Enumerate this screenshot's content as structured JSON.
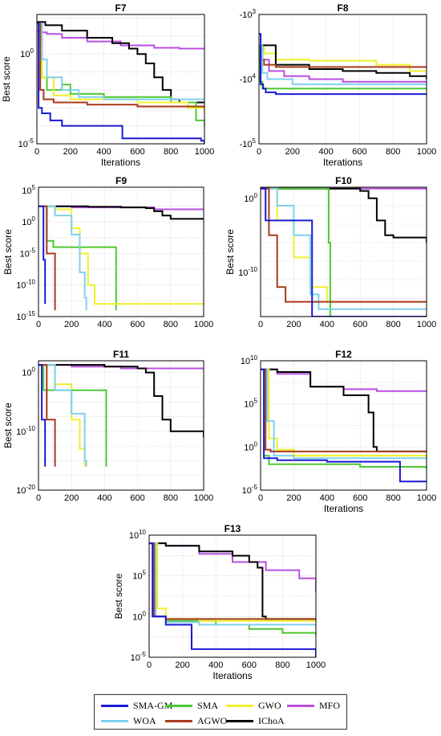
{
  "series_styles": [
    {
      "key": "SMA-GM",
      "color": "#1a1ad6"
    },
    {
      "key": "SMA",
      "color": "#4cc832"
    },
    {
      "key": "GWO",
      "color": "#f0f02a"
    },
    {
      "key": "MFO",
      "color": "#b84fe0"
    },
    {
      "key": "WOA",
      "color": "#7fd0ee"
    },
    {
      "key": "AGWO",
      "color": "#a83a1c"
    },
    {
      "key": "IChoA",
      "color": "#000000"
    }
  ],
  "legend": {
    "entries": [
      "SMA-GM",
      "SMA",
      "GWO",
      "MFO",
      "WOA",
      "AGWO",
      "IChoA"
    ]
  },
  "chart_data": [
    {
      "id": "F7",
      "type": "line",
      "title": "F7",
      "xlabel": "Iterations",
      "ylabel": "Best score",
      "yscale": "log",
      "xlim": [
        0,
        1000
      ],
      "ylim_exp": [
        -5,
        2.2
      ],
      "xticks": [
        "0",
        "200",
        "400",
        "600",
        "800",
        "1000"
      ],
      "yticks": [
        "10^0",
        "10^-5"
      ],
      "series": [
        {
          "key": "MFO",
          "x": [
            0,
            20,
            60,
            150,
            300,
            500,
            700,
            850,
            1000
          ],
          "y": [
            20,
            16,
            13,
            8,
            5,
            3,
            2.2,
            2,
            2
          ]
        },
        {
          "key": "IChoA",
          "x": [
            0,
            50,
            150,
            300,
            450,
            550,
            600,
            650,
            700,
            750,
            800,
            850,
            900,
            1000
          ],
          "y": [
            60,
            40,
            20,
            8,
            4,
            2,
            1,
            0.3,
            0.05,
            0.01,
            0.003,
            0.002,
            0.002,
            0.002
          ]
        },
        {
          "key": "SMA",
          "x": [
            0,
            30,
            60,
            150,
            200,
            400,
            800,
            950,
            1000
          ],
          "y": [
            50,
            0.05,
            0.01,
            0.02,
            0.006,
            0.004,
            0.002,
            0.0002,
            0.0001
          ]
        },
        {
          "key": "GWO",
          "x": [
            0,
            10,
            30,
            100,
            200,
            600,
            900,
            1000
          ],
          "y": [
            50,
            5,
            0.05,
            0.005,
            0.003,
            0.002,
            0.001,
            0.0005
          ]
        },
        {
          "key": "WOA",
          "x": [
            0,
            30,
            60,
            150,
            250,
            400,
            1000
          ],
          "y": [
            50,
            0.5,
            0.05,
            0.01,
            0.004,
            0.003,
            0.002
          ]
        },
        {
          "key": "AGWO",
          "x": [
            0,
            20,
            40,
            100,
            300,
            600,
            1000
          ],
          "y": [
            50,
            0.01,
            0.003,
            0.002,
            0.0015,
            0.0012,
            0.001
          ]
        },
        {
          "key": "SMA-GM",
          "x": [
            0,
            10,
            30,
            80,
            150,
            500,
            510,
            980,
            1000
          ],
          "y": [
            50,
            0.001,
            0.0005,
            0.0002,
            0.0001,
            0.0001,
            2e-05,
            1.5e-05,
            1e-05
          ]
        }
      ]
    },
    {
      "id": "F8",
      "type": "line",
      "title": "F8",
      "xlabel": "Iterations",
      "ylabel": "",
      "yscale": "-log",
      "xlim": [
        0,
        1000
      ],
      "ylim_exp": [
        3,
        5
      ],
      "xticks": [
        "0",
        "200",
        "400",
        "600",
        "800",
        "1000"
      ],
      "yticks": [
        "-10^3",
        "-10^4",
        "-10^5"
      ],
      "series": [
        {
          "key": "GWO",
          "x": [
            0,
            30,
            100,
            300,
            600,
            700,
            900,
            1000
          ],
          "y": [
            3000,
            4000,
            5000,
            5200,
            5200,
            6000,
            7500,
            8000
          ]
        },
        {
          "key": "MFO",
          "x": [
            0,
            20,
            60,
            150,
            300,
            500,
            800,
            1000
          ],
          "y": [
            3000,
            5000,
            7500,
            9000,
            10000,
            11000,
            11000,
            11000
          ]
        },
        {
          "key": "IChoA",
          "x": [
            0,
            100,
            300,
            500,
            700,
            900,
            1000
          ],
          "y": [
            3000,
            6000,
            7000,
            7500,
            8000,
            9000,
            10000
          ]
        },
        {
          "key": "AGWO",
          "x": [
            0,
            10,
            30,
            100,
            300,
            600,
            1000
          ],
          "y": [
            3000,
            5000,
            6000,
            6500,
            6500,
            6500,
            6500
          ]
        },
        {
          "key": "SMA",
          "x": [
            0,
            5,
            20,
            1000
          ],
          "y": [
            3000,
            11000,
            14000,
            14000
          ]
        },
        {
          "key": "WOA",
          "x": [
            0,
            20,
            50,
            200,
            1000
          ],
          "y": [
            3000,
            8000,
            10000,
            12000,
            12000
          ]
        },
        {
          "key": "SMA-GM",
          "x": [
            0,
            10,
            25,
            40,
            100,
            200,
            1000
          ],
          "y": [
            2000,
            12000,
            14000,
            16000,
            17000,
            17000,
            17000
          ]
        }
      ]
    },
    {
      "id": "F9",
      "type": "line",
      "title": "F9",
      "xlabel": "",
      "ylabel": "Best score",
      "yscale": "log",
      "xlim": [
        0,
        1000
      ],
      "ylim_exp": [
        -15,
        5.5
      ],
      "xticks": [
        "0",
        "200",
        "400",
        "600",
        "800",
        "1000"
      ],
      "yticks": [
        "10^5",
        "10^0",
        "10^-5",
        "10^-10",
        "10^-15"
      ],
      "series": [
        {
          "key": "MFO",
          "x": [
            0,
            200,
            700,
            1000
          ],
          "y": [
            300,
            200,
            100,
            100
          ]
        },
        {
          "key": "IChoA",
          "x": [
            0,
            300,
            500,
            650,
            700,
            750,
            800,
            1000
          ],
          "y": [
            300,
            250,
            200,
            150,
            50,
            10,
            3,
            3
          ]
        },
        {
          "key": "SMA",
          "x": [
            0,
            50,
            90,
            460,
            470
          ],
          "y": [
            300,
            0.001,
            0.0001,
            0.0001,
            1e-14
          ]
        },
        {
          "key": "GWO",
          "x": [
            0,
            100,
            200,
            250,
            300,
            340,
            1000
          ],
          "y": [
            300,
            100,
            0.1,
            1e-05,
            1e-10,
            1e-13,
            1e-13
          ]
        },
        {
          "key": "WOA",
          "x": [
            0,
            100,
            200,
            250,
            280,
            290
          ],
          "y": [
            300,
            10,
            0.01,
            1e-08,
            1e-12,
            1e-14
          ]
        },
        {
          "key": "AGWO",
          "x": [
            0,
            50,
            100
          ],
          "y": [
            300,
            1e-05,
            1e-14
          ]
        },
        {
          "key": "SMA-GM",
          "x": [
            0,
            30,
            40
          ],
          "y": [
            300,
            1e-06,
            1e-13
          ]
        }
      ]
    },
    {
      "id": "F10",
      "type": "line",
      "title": "F10",
      "xlabel": "",
      "ylabel": "Best score",
      "yscale": "log",
      "xlim": [
        0,
        1000
      ],
      "ylim_exp": [
        -16,
        1.5
      ],
      "xticks": [
        "0",
        "200",
        "400",
        "600",
        "800",
        "1000"
      ],
      "yticks": [
        "10^0",
        "10^-10"
      ],
      "series": [
        {
          "key": "MFO",
          "x": [
            0,
            1000
          ],
          "y": [
            20,
            20
          ]
        },
        {
          "key": "IChoA",
          "x": [
            0,
            550,
            600,
            650,
            700,
            750,
            800,
            1000
          ],
          "y": [
            20,
            20,
            10,
            1,
            0.001,
            1e-05,
            5e-06,
            1e-06
          ]
        },
        {
          "key": "SMA",
          "x": [
            0,
            400,
            410,
            420
          ],
          "y": [
            20,
            20,
            1e-06,
            1e-16
          ]
        },
        {
          "key": "GWO",
          "x": [
            0,
            100,
            200,
            300,
            400,
            1000
          ],
          "y": [
            20,
            0.001,
            1e-08,
            1e-12,
            1e-14,
            1e-14
          ]
        },
        {
          "key": "WOA",
          "x": [
            0,
            100,
            200,
            300,
            350,
            1000
          ],
          "y": [
            20,
            0.1,
            1e-05,
            1e-13,
            1e-15,
            1e-15
          ]
        },
        {
          "key": "AGWO",
          "x": [
            0,
            50,
            100,
            150,
            1000
          ],
          "y": [
            20,
            1e-05,
            1e-12,
            1e-14,
            1e-14
          ]
        },
        {
          "key": "SMA-GM",
          "x": [
            0,
            30,
            300,
            310,
            1000
          ],
          "y": [
            20,
            0.001,
            0.001,
            1e-16,
            1e-16
          ]
        }
      ]
    },
    {
      "id": "F11",
      "type": "line",
      "title": "F11",
      "xlabel": "",
      "ylabel": "Best score",
      "yscale": "log",
      "xlim": [
        0,
        1000
      ],
      "ylim_exp": [
        -20,
        2
      ],
      "xticks": [
        "0",
        "200",
        "400",
        "600",
        "800",
        "1000"
      ],
      "yticks": [
        "10^0",
        "10^-10",
        "10^-20"
      ],
      "series": [
        {
          "key": "MFO",
          "x": [
            0,
            200,
            500,
            800,
            1000
          ],
          "y": [
            20,
            10,
            5,
            5,
            5
          ]
        },
        {
          "key": "IChoA",
          "x": [
            0,
            400,
            600,
            650,
            700,
            750,
            800,
            1000
          ],
          "y": [
            20,
            10,
            5,
            1,
            0.0001,
            1e-08,
            1e-10,
            1e-11
          ]
        },
        {
          "key": "SMA",
          "x": [
            0,
            30,
            390,
            400,
            410
          ],
          "y": [
            20,
            0.001,
            0.001,
            0.001,
            1e-16
          ]
        },
        {
          "key": "GWO",
          "x": [
            0,
            100,
            200,
            250,
            280
          ],
          "y": [
            20,
            0.01,
            1e-08,
            1e-13,
            1e-16
          ]
        },
        {
          "key": "WOA",
          "x": [
            0,
            100,
            200,
            280,
            290
          ],
          "y": [
            20,
            0.001,
            1e-07,
            1e-15,
            1e-16
          ]
        },
        {
          "key": "AGWO",
          "x": [
            0,
            50,
            100
          ],
          "y": [
            20,
            1e-08,
            1e-16
          ]
        },
        {
          "key": "SMA-GM",
          "x": [
            0,
            20,
            40
          ],
          "y": [
            20,
            1e-08,
            1e-16
          ]
        }
      ]
    },
    {
      "id": "F12",
      "type": "line",
      "title": "F12",
      "xlabel": "Iterations",
      "ylabel": "",
      "yscale": "log",
      "xlim": [
        0,
        1000
      ],
      "ylim_exp": [
        -5,
        10
      ],
      "xticks": [
        "0",
        "200",
        "400",
        "600",
        "800",
        "1000"
      ],
      "yticks": [
        "10^10",
        "10^5",
        "10^0",
        "10^-5"
      ],
      "series": [
        {
          "key": "MFO",
          "x": [
            0,
            100,
            300,
            500,
            700,
            800,
            1000
          ],
          "y": [
            1000000000.0,
            300000000.0,
            10000000.0,
            5000000.0,
            3000000.0,
            3000000.0,
            3000000.0
          ]
        },
        {
          "key": "IChoA",
          "x": [
            0,
            100,
            300,
            500,
            650,
            680,
            700,
            750,
            1000
          ],
          "y": [
            1000000000.0,
            500000000.0,
            10000000.0,
            1000000.0,
            10000.0,
            1,
            0.3,
            0.3,
            0.3
          ]
        },
        {
          "key": "SMA",
          "x": [
            0,
            20,
            50,
            100,
            300,
            600,
            1000
          ],
          "y": [
            1000000000.0,
            0.1,
            0.01,
            0.01,
            0.01,
            0.005,
            0.003
          ]
        },
        {
          "key": "GWO",
          "x": [
            0,
            50,
            100,
            200,
            1000
          ],
          "y": [
            1000000000.0,
            10,
            0.5,
            0.1,
            0.05
          ]
        },
        {
          "key": "WOA",
          "x": [
            0,
            40,
            80,
            200,
            1000
          ],
          "y": [
            1000000000.0,
            1000,
            0.1,
            0.05,
            0.03
          ]
        },
        {
          "key": "AGWO",
          "x": [
            0,
            30,
            60,
            1000
          ],
          "y": [
            1000000000.0,
            0.5,
            0.3,
            0.3
          ]
        },
        {
          "key": "SMA-GM",
          "x": [
            0,
            20,
            100,
            400,
            800,
            840,
            1000
          ],
          "y": [
            1000000000.0,
            0.05,
            0.03,
            0.02,
            0.02,
            0.0001,
            0.0001
          ]
        }
      ]
    },
    {
      "id": "F13",
      "type": "line",
      "title": "F13",
      "xlabel": "Iterations",
      "ylabel": "Best score",
      "yscale": "log",
      "xlim": [
        0,
        1000
      ],
      "ylim_exp": [
        -5,
        10
      ],
      "xticks": [
        "0",
        "200",
        "400",
        "600",
        "800",
        "1000"
      ],
      "yticks": [
        "10^10",
        "10^5",
        "10^0",
        "10^-5"
      ],
      "series": [
        {
          "key": "MFO",
          "x": [
            0,
            100,
            300,
            500,
            700,
            900,
            1000
          ],
          "y": [
            1000000000.0,
            500000000.0,
            50000000.0,
            5000000.0,
            500000.0,
            50000.0,
            1000.0
          ]
        },
        {
          "key": "IChoA",
          "x": [
            0,
            100,
            300,
            500,
            600,
            650,
            680,
            700,
            1000
          ],
          "y": [
            1000000000.0,
            500000000.0,
            100000000.0,
            30000000.0,
            5000000.0,
            1000000.0,
            1,
            0.5,
            0.5
          ]
        },
        {
          "key": "SMA",
          "x": [
            0,
            30,
            100,
            400,
            600,
            800,
            1000
          ],
          "y": [
            1000000000.0,
            1,
            0.3,
            0.1,
            0.03,
            0.01,
            0.005
          ]
        },
        {
          "key": "GWO",
          "x": [
            0,
            50,
            100,
            300,
            1000
          ],
          "y": [
            1000000000.0,
            10,
            0.5,
            0.3,
            0.2
          ]
        },
        {
          "key": "WOA",
          "x": [
            0,
            40,
            100,
            300,
            1000
          ],
          "y": [
            1000000000.0,
            1,
            0.2,
            0.1,
            0.05
          ]
        },
        {
          "key": "AGWO",
          "x": [
            0,
            30,
            100,
            1000
          ],
          "y": [
            1000000000.0,
            1,
            0.5,
            0.5
          ]
        },
        {
          "key": "SMA-GM",
          "x": [
            0,
            20,
            100,
            250,
            255,
            990,
            1000
          ],
          "y": [
            1000000000.0,
            1,
            0.1,
            0.1,
            0.0001,
            0.0001,
            1e-05
          ]
        }
      ]
    }
  ]
}
